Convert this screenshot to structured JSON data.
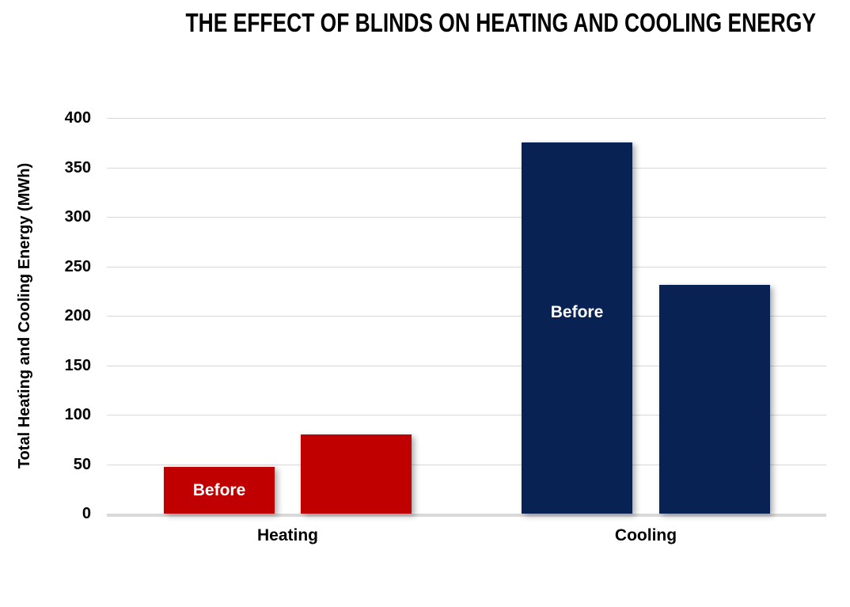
{
  "chart_data": {
    "type": "bar",
    "title": "THE EFFECT OF BLINDS ON HEATING AND COOLING ENERGY",
    "xlabel": "",
    "ylabel": "Total Heating and Cooling Energy (MWh)",
    "ylim": [
      0,
      400
    ],
    "yticks": [
      0,
      50,
      100,
      150,
      200,
      250,
      300,
      350,
      400
    ],
    "grid": true,
    "legend": "none",
    "categories": [
      "Heating",
      "Cooling"
    ],
    "groups": [
      {
        "category": "Heating",
        "color": "#C00000",
        "bars": [
          {
            "value": 47,
            "label": "Before"
          },
          {
            "value": 80,
            "label": ""
          }
        ]
      },
      {
        "category": "Cooling",
        "color": "#072253",
        "bars": [
          {
            "value": 375,
            "label": "Before"
          },
          {
            "value": 231,
            "label": ""
          }
        ]
      }
    ],
    "colors": {
      "heating_bars": "#C00000",
      "cooling_bars": "#072253",
      "gridline": "#D9D9D9",
      "axis_line": "#D9D9D9",
      "bar_label_text": "#FFFFFF",
      "title_text": "#000000",
      "background": "#FFFFFF"
    }
  }
}
